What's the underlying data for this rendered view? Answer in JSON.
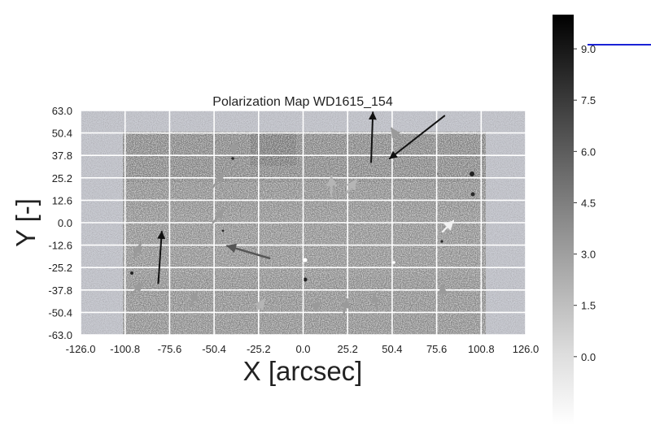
{
  "chart_data": {
    "type": "scatter",
    "title": "Polarization Map WD1615_154",
    "xlabel": "X [arcsec]",
    "ylabel": "Y [-]",
    "xlim": [
      -126.0,
      126.0
    ],
    "ylim": [
      -63.0,
      63.0
    ],
    "x_ticks": [
      "-126.0",
      "-100.8",
      "-75.6",
      "-50.4",
      "-25.2",
      "0.0",
      "25.2",
      "50.4",
      "75.6",
      "100.8",
      "126.0"
    ],
    "y_ticks": [
      "63.0",
      "50.4",
      "37.8",
      "25.2",
      "12.6",
      "0.0",
      "-12.6",
      "-25.2",
      "-37.8",
      "-50.4",
      "-63.0"
    ],
    "grid": true,
    "colormap": "gray_r",
    "colorbar": {
      "ticks": [
        "9.0",
        "7.5",
        "6.0",
        "4.5",
        "3.0",
        "1.5",
        "0.0"
      ],
      "range": [
        -2.0,
        10.0
      ]
    },
    "polarization_vectors": [
      {
        "x": 38.5,
        "y": 34.0,
        "dx": 1.0,
        "dy": 28.0,
        "shade": "dark"
      },
      {
        "x": 80.0,
        "y": 60.0,
        "dx": -31.0,
        "dy": -24.0,
        "shade": "dark"
      },
      {
        "x": -82.0,
        "y": -34.0,
        "dx": 2.0,
        "dy": 29.0,
        "shade": "dark"
      },
      {
        "x": -19.0,
        "y": -20.0,
        "dx": -24.0,
        "dy": 7.0,
        "shade": "medium"
      },
      {
        "x": -39.0,
        "y": 46.0,
        "dx": 0.0,
        "dy": -7.0,
        "shade": "light"
      },
      {
        "x": -51.0,
        "y": 20.0,
        "dx": 6.0,
        "dy": 8.0,
        "shade": "light"
      },
      {
        "x": -51.0,
        "y": 0.0,
        "dx": 6.0,
        "dy": 7.0,
        "shade": "light"
      },
      {
        "x": -96.0,
        "y": -20.0,
        "dx": 4.0,
        "dy": 8.0,
        "shade": "light"
      },
      {
        "x": -97.0,
        "y": -40.0,
        "dx": 6.0,
        "dy": 6.0,
        "shade": "light"
      },
      {
        "x": -64.0,
        "y": -47.0,
        "dx": 4.0,
        "dy": 8.0,
        "shade": "light"
      },
      {
        "x": -26.0,
        "y": -49.0,
        "dx": 4.0,
        "dy": 6.0,
        "shade": "lighter"
      },
      {
        "x": 16.0,
        "y": 15.0,
        "dx": 0.0,
        "dy": 11.0,
        "shade": "lighter"
      },
      {
        "x": 25.0,
        "y": 17.0,
        "dx": 5.0,
        "dy": 7.0,
        "shade": "lighter"
      },
      {
        "x": 23.0,
        "y": -51.0,
        "dx": 2.0,
        "dy": 8.0,
        "shade": "light"
      },
      {
        "x": 42.0,
        "y": -49.0,
        "dx": -2.0,
        "dy": 9.0,
        "shade": "light"
      },
      {
        "x": 7.0,
        "y": -47.0,
        "dx": 3.0,
        "dy": 2.0,
        "shade": "light"
      },
      {
        "x": 79.0,
        "y": -5.0,
        "dx": 6.0,
        "dy": 6.0,
        "shade": "white"
      },
      {
        "x": 79.0,
        "y": -41.0,
        "dx": 0.0,
        "dy": 6.0,
        "shade": "light"
      },
      {
        "x": 52.0,
        "y": 50.0,
        "dx": -2.0,
        "dy": 3.0,
        "shade": "light"
      }
    ]
  }
}
